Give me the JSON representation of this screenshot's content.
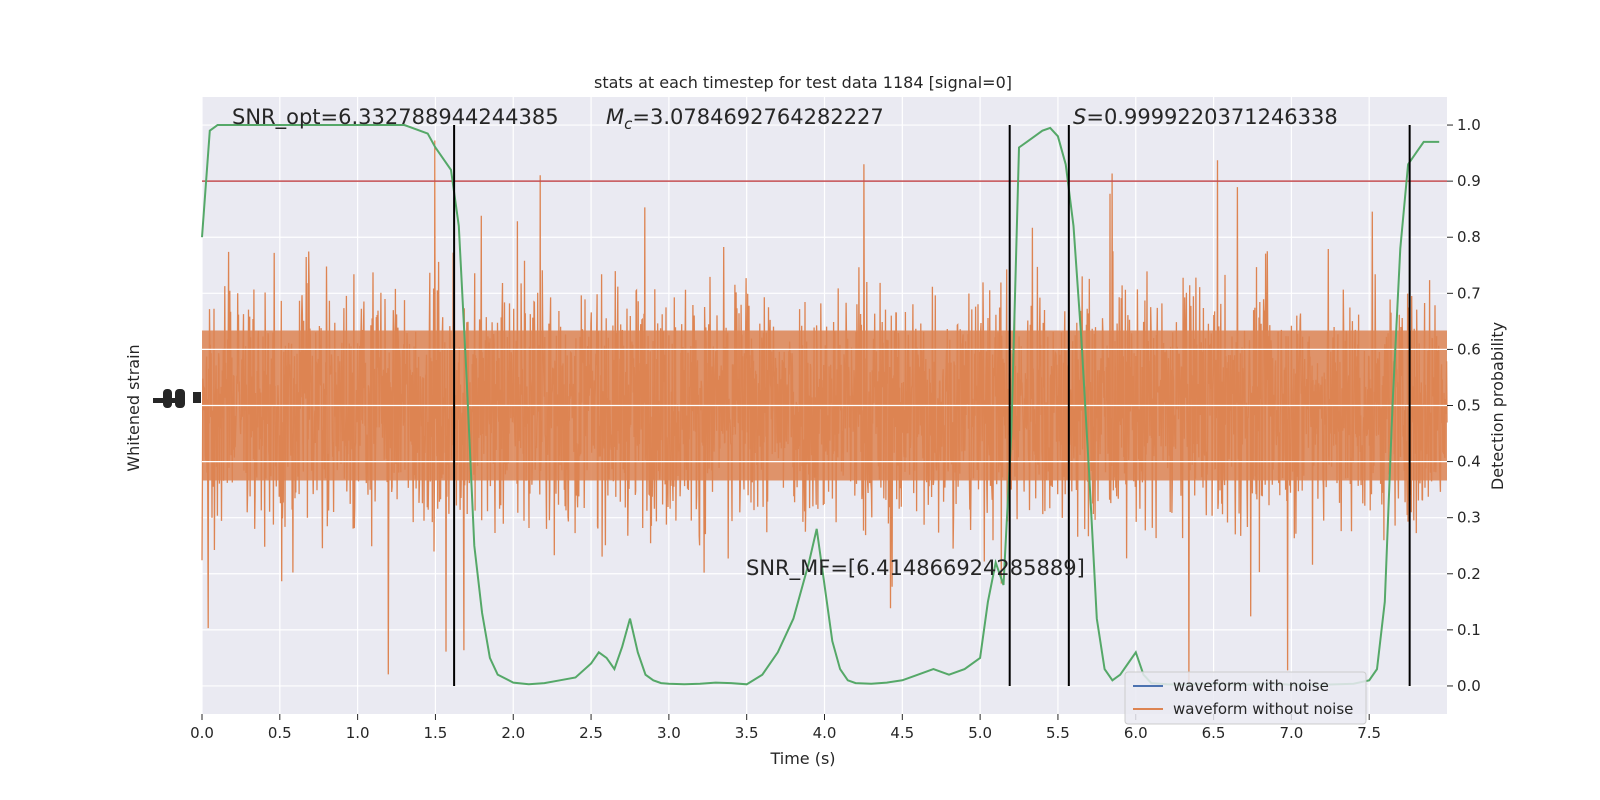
{
  "chart_data": {
    "type": "line",
    "title": "stats at each timestep for test data 1184 [signal=0]",
    "xlabel": "Time (s)",
    "ylabel_left": "Whitened strain",
    "ylabel_right": "Detection probability",
    "xlim": [
      0.0,
      8.0
    ],
    "ylim_right": [
      -0.05,
      1.05
    ],
    "x_ticks": [
      "0.0",
      "0.5",
      "1.0",
      "1.5",
      "2.0",
      "2.5",
      "3.0",
      "3.5",
      "4.0",
      "4.5",
      "5.0",
      "5.5",
      "6.0",
      "6.5",
      "7.0",
      "7.5"
    ],
    "x_tick_values": [
      0.0,
      0.5,
      1.0,
      1.5,
      2.0,
      2.5,
      3.0,
      3.5,
      4.0,
      4.5,
      5.0,
      5.5,
      6.0,
      6.5,
      7.0,
      7.5
    ],
    "y_right_ticks": [
      "0.0",
      "0.1",
      "0.2",
      "0.3",
      "0.4",
      "0.5",
      "0.6",
      "0.7",
      "0.8",
      "0.9",
      "1.0"
    ],
    "y_right_tick_values": [
      0.0,
      0.1,
      0.2,
      0.3,
      0.4,
      0.5,
      0.6,
      0.7,
      0.8,
      0.9,
      1.0
    ],
    "threshold": 0.9,
    "vertical_lines": [
      1.62,
      5.19,
      5.57,
      7.76
    ],
    "annotations": {
      "snr_opt": "SNR_opt=6.332788944244385",
      "mc_symbol": "M",
      "mc_subscript": "c",
      "mc_value": "=3.0784692764282227",
      "s_symbol": "S",
      "s_value": "=0.9999220371246338",
      "snr_mf": "SNR_MF=[6.414866924285889]"
    },
    "series": [
      {
        "name": "waveform with noise",
        "color": "#4c72b0"
      },
      {
        "name": "waveform without noise",
        "color": "#dd8452"
      }
    ],
    "probability": {
      "color": "#55a868",
      "x": [
        0.0,
        0.05,
        0.1,
        0.2,
        0.3,
        0.5,
        0.7,
        0.9,
        1.1,
        1.3,
        1.45,
        1.5,
        1.55,
        1.6,
        1.65,
        1.7,
        1.75,
        1.8,
        1.85,
        1.9,
        2.0,
        2.1,
        2.2,
        2.3,
        2.4,
        2.5,
        2.55,
        2.6,
        2.65,
        2.7,
        2.75,
        2.8,
        2.85,
        2.9,
        2.95,
        3.0,
        3.1,
        3.2,
        3.3,
        3.4,
        3.5,
        3.6,
        3.7,
        3.8,
        3.9,
        3.95,
        4.0,
        4.05,
        4.1,
        4.15,
        4.2,
        4.3,
        4.4,
        4.5,
        4.6,
        4.7,
        4.8,
        4.9,
        5.0,
        5.05,
        5.1,
        5.15,
        5.2,
        5.25,
        5.3,
        5.35,
        5.4,
        5.45,
        5.5,
        5.55,
        5.6,
        5.65,
        5.7,
        5.75,
        5.8,
        5.85,
        5.9,
        5.95,
        6.0,
        6.05,
        6.1,
        6.2,
        6.3,
        6.4,
        6.5,
        6.6,
        6.7,
        6.8,
        6.9,
        7.0,
        7.1,
        7.2,
        7.3,
        7.4,
        7.5,
        7.55,
        7.6,
        7.65,
        7.7,
        7.75,
        7.8,
        7.85,
        7.9,
        7.95
      ],
      "y": [
        0.8,
        0.99,
        1.0,
        1.0,
        1.0,
        1.0,
        1.0,
        1.0,
        1.0,
        1.0,
        0.985,
        0.96,
        0.94,
        0.92,
        0.82,
        0.55,
        0.25,
        0.13,
        0.05,
        0.02,
        0.006,
        0.003,
        0.005,
        0.01,
        0.015,
        0.04,
        0.06,
        0.05,
        0.03,
        0.07,
        0.12,
        0.06,
        0.02,
        0.01,
        0.005,
        0.004,
        0.003,
        0.004,
        0.006,
        0.005,
        0.003,
        0.02,
        0.06,
        0.12,
        0.22,
        0.28,
        0.18,
        0.08,
        0.03,
        0.01,
        0.005,
        0.004,
        0.006,
        0.01,
        0.02,
        0.03,
        0.02,
        0.03,
        0.05,
        0.15,
        0.22,
        0.18,
        0.45,
        0.96,
        0.97,
        0.98,
        0.99,
        0.995,
        0.98,
        0.93,
        0.82,
        0.62,
        0.38,
        0.12,
        0.03,
        0.01,
        0.02,
        0.04,
        0.06,
        0.02,
        0.005,
        0.003,
        0.002,
        0.003,
        0.004,
        0.003,
        0.002,
        0.003,
        0.004,
        0.002,
        0.003,
        0.002,
        0.003,
        0.004,
        0.01,
        0.03,
        0.15,
        0.5,
        0.78,
        0.93,
        0.95,
        0.97,
        0.97,
        0.97
      ]
    }
  }
}
